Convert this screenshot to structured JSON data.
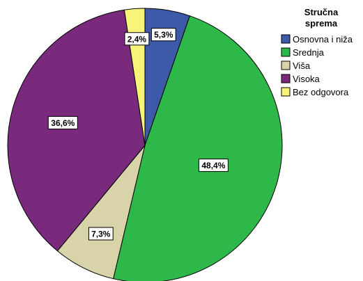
{
  "chart_data": {
    "type": "pie",
    "legend_title_lines": [
      "Stručna",
      "sprema"
    ],
    "legend_position": "right",
    "start_angle_deg": 0,
    "direction": "clockwise",
    "slices": [
      {
        "name": "Osnovna i niža",
        "value": 5.3,
        "label": "5,3%",
        "color": "#3c5aa8"
      },
      {
        "name": "Srednja",
        "value": 48.4,
        "label": "48,4%",
        "color": "#2eb84a"
      },
      {
        "name": "Viša",
        "value": 7.3,
        "label": "7,3%",
        "color": "#d8d3a8"
      },
      {
        "name": "Visoka",
        "value": 36.6,
        "label": "36,6%",
        "color": "#7a2a7c"
      },
      {
        "name": "Bez odgovora",
        "value": 2.4,
        "label": "2,4%",
        "color": "#f8f478"
      }
    ]
  }
}
